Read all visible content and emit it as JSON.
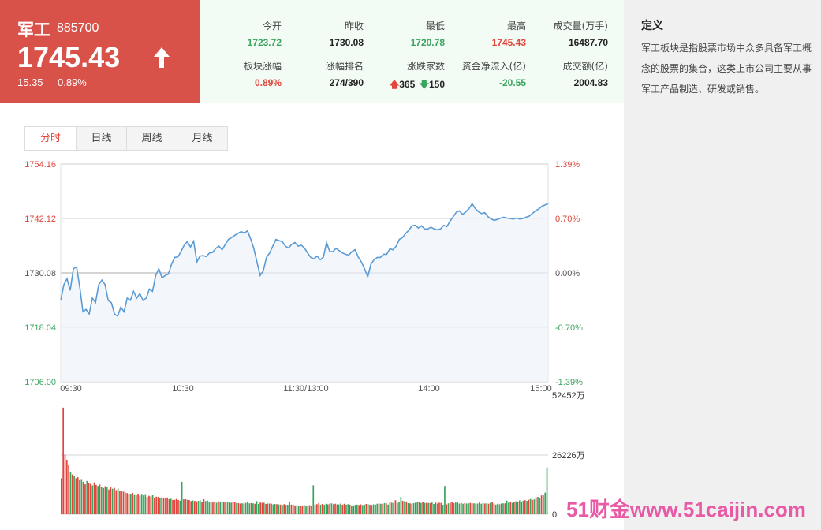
{
  "header": {
    "name": "军工",
    "code": "885700",
    "price": "1745.43",
    "change": "15.35",
    "change_pct": "0.89%"
  },
  "stats": {
    "open_label": "今开",
    "open": "1723.72",
    "prev_close_label": "昨收",
    "prev_close": "1730.08",
    "low_label": "最低",
    "low": "1720.78",
    "high_label": "最高",
    "high": "1745.43",
    "volume_label": "成交量(万手)",
    "volume": "16487.70",
    "pct_label": "板块涨幅",
    "pct": "0.89%",
    "rank_label": "涨幅排名",
    "rank": "274/390",
    "updown_label": "涨跌家数",
    "up": "365",
    "down": "150",
    "netflow_label": "资金净流入(亿)",
    "netflow": "-20.55",
    "amount_label": "成交额(亿)",
    "amount": "2004.83"
  },
  "definition": {
    "title": "定义",
    "text": "军工板块是指股票市场中众多具备军工概念的股票的集合，这类上市公司主要从事军工产品制造、研发或销售。"
  },
  "tabs": [
    "分时",
    "日线",
    "周线",
    "月线"
  ],
  "colors": {
    "up": "#e0463c",
    "down": "#3aa55f",
    "line": "#5b9bd5",
    "header_bg": "#d9524a"
  },
  "chart_data": [
    {
      "type": "line",
      "x_labels": [
        "09:30",
        "10:30",
        "11:30/13:00",
        "14:00",
        "15:00"
      ],
      "y_ticks_left": [
        "1754.16",
        "1742.12",
        "1730.08",
        "1718.04",
        "1706.00"
      ],
      "y_ticks_right": [
        "1.39%",
        "0.70%",
        "0.00%",
        "-0.70%",
        "-1.39%"
      ],
      "ylim": [
        1706.0,
        1754.16
      ],
      "baseline": 1730.08,
      "series": [
        {
          "values": [
            1724.0,
            1727.5,
            1728.8,
            1726.2,
            1731.0,
            1731.4,
            1727.0,
            1721.5,
            1722.0,
            1721.0,
            1724.5,
            1723.5,
            1727.5,
            1728.5,
            1727.5,
            1724.0,
            1723.5,
            1721.0,
            1720.5,
            1722.5,
            1721.5,
            1724.5,
            1724.0,
            1726.0,
            1724.5,
            1725.5,
            1724.0,
            1724.5,
            1726.5,
            1726.0,
            1729.5,
            1731.0,
            1729.0,
            1729.5,
            1729.8,
            1732.0,
            1733.5,
            1733.6,
            1734.8,
            1736.2,
            1737.0,
            1735.8,
            1737.1,
            1732.5,
            1733.8,
            1733.9,
            1733.7,
            1734.5,
            1734.6,
            1735.5,
            1736.0,
            1735.2,
            1736.4,
            1737.5,
            1737.9,
            1738.4,
            1738.8,
            1739.2,
            1738.9,
            1739.4,
            1737.6,
            1735.5,
            1732.5,
            1729.5,
            1730.5,
            1733.5,
            1734.5,
            1736.0,
            1737.5,
            1737.2,
            1737.0,
            1736.0,
            1735.6,
            1736.4,
            1736.8,
            1736.0,
            1736.2,
            1735.6,
            1734.5,
            1733.5,
            1733.2,
            1733.8,
            1733.0,
            1733.6,
            1736.8,
            1734.8,
            1734.8,
            1735.5,
            1735.0,
            1734.5,
            1734.2,
            1734.0,
            1734.8,
            1735.2,
            1733.6,
            1732.5,
            1731.0,
            1729.2,
            1732.0,
            1733.0,
            1733.5,
            1733.5,
            1734.2,
            1734.2,
            1735.4,
            1735.2,
            1736.0,
            1737.5,
            1737.9,
            1738.8,
            1739.5,
            1740.5,
            1740.6,
            1740.0,
            1740.5,
            1739.8,
            1739.8,
            1740.2,
            1739.8,
            1739.6,
            1739.8,
            1740.6,
            1740.3,
            1741.5,
            1742.5,
            1743.5,
            1743.8,
            1743.0,
            1743.6,
            1744.3,
            1745.4,
            1744.3,
            1743.6,
            1743.2,
            1743.4,
            1742.5,
            1742.0,
            1741.7,
            1741.9,
            1742.2,
            1742.4,
            1742.2,
            1742.1,
            1742.0,
            1742.2,
            1742.0,
            1742.1,
            1742.4,
            1742.6,
            1743.2,
            1743.8,
            1744.2,
            1744.8,
            1745.1,
            1745.4
          ]
        }
      ]
    },
    {
      "type": "bar",
      "y_ticks_right": [
        "52452万",
        "26226万",
        "0"
      ],
      "ylim": [
        0,
        52452
      ],
      "values": [
        17200,
        51000,
        28500,
        26000,
        23800,
        20000,
        19000,
        18500,
        17200,
        17700,
        16200,
        16800,
        15500,
        14300,
        15900,
        15000,
        14500,
        13800,
        15200,
        14000,
        13500,
        14200,
        13200,
        12500,
        13400,
        12800,
        11800,
        13000,
        12200,
        12600,
        11500,
        12200,
        11000,
        11300,
        10800,
        10400,
        10100,
        9800,
        9800,
        10200,
        9500,
        9200,
        9800,
        8800,
        9700,
        9000,
        9600,
        8200,
        8800,
        8500,
        9400,
        8000,
        8400,
        8300,
        7900,
        8100,
        7800,
        7500,
        8000,
        7200,
        7400,
        6800,
        6900,
        7300,
        6800,
        6500,
        15500,
        7100,
        7200,
        6900,
        6800,
        6300,
        6600,
        6400,
        6100,
        6400,
        6600,
        6000,
        7200,
        6300,
        6500,
        5800,
        5700,
        5600,
        6100,
        5500,
        6200,
        5700,
        5600,
        5800,
        5800,
        5800,
        5600,
        5500,
        5900,
        5800,
        5400,
        5300,
        5100,
        5200,
        5100,
        5400,
        5800,
        5200,
        5300,
        5200,
        5000,
        6300,
        4900,
        5600,
        5500,
        5500,
        4900,
        5100,
        5100,
        5000,
        4700,
        4900,
        4800,
        4700,
        4600,
        4400,
        4800,
        4500,
        4500,
        5700,
        4600,
        4500,
        4200,
        4300,
        4100,
        3800,
        4100,
        4400,
        4000,
        4000,
        4300,
        4200,
        13800,
        4600,
        4800,
        5300,
        4600,
        4900,
        4500,
        5000,
        4700,
        5000,
        5200,
        4800,
        5000,
        4700,
        4700,
        5100,
        4600,
        5000,
        4600,
        4800,
        4600,
        4200,
        4200,
        4500,
        4600,
        4400,
        4700,
        4400,
        4600,
        4900,
        4800,
        4500,
        4400,
        4700,
        4600,
        5000,
        5100,
        5000,
        4900,
        5300,
        5200,
        4600,
        5700,
        5500,
        5400,
        6700,
        5400,
        5800,
        8200,
        6400,
        6200,
        6100,
        5300,
        5200,
        5000,
        5300,
        5500,
        5700,
        5800,
        5400,
        5700,
        5400,
        5400,
        5400,
        5300,
        5600,
        4900,
        5600,
        5100,
        5500,
        5400,
        4500,
        13500,
        4700,
        5200,
        5500,
        5700,
        5300,
        5600,
        5600,
        5100,
        5500,
        5000,
        5300,
        5100,
        5200,
        5400,
        5200,
        5200,
        5100,
        5100,
        5600,
        5000,
        5400,
        5100,
        5300,
        5000,
        5400,
        5700,
        5100,
        4600,
        5000,
        4800,
        5100,
        5200,
        5200,
        6500,
        5500,
        5700,
        5400,
        5700,
        6200,
        5800,
        6600,
        5900,
        6500,
        6700,
        6400,
        6900,
        7300,
        6800,
        7100,
        8100,
        8300,
        7900,
        9000,
        9400,
        10300,
        22400
      ],
      "colors": [
        "up",
        "up",
        "up",
        "up",
        "up",
        "down",
        "up",
        "down",
        "up",
        "up",
        "up",
        "down",
        "up",
        "up",
        "down",
        "up",
        "up",
        "down",
        "up",
        "up",
        "down",
        "up",
        "down",
        "up",
        "up",
        "down",
        "up",
        "up",
        "down",
        "up",
        "up",
        "down",
        "up",
        "down",
        "up",
        "down",
        "up",
        "up",
        "down",
        "up",
        "down",
        "up",
        "up",
        "down",
        "down",
        "up",
        "down",
        "up",
        "up",
        "up",
        "down",
        "up",
        "up",
        "up",
        "down",
        "up",
        "up",
        "down",
        "up",
        "up",
        "down",
        "up",
        "up",
        "up",
        "up",
        "down",
        "down",
        "up",
        "up",
        "down",
        "up",
        "up",
        "down",
        "up",
        "up",
        "down",
        "down",
        "up",
        "up",
        "down",
        "up",
        "down",
        "down",
        "up",
        "up",
        "down",
        "up",
        "down",
        "down",
        "up",
        "up",
        "down",
        "up",
        "down",
        "up",
        "up",
        "down",
        "up",
        "up",
        "down",
        "up",
        "down",
        "up",
        "down",
        "up",
        "down",
        "up",
        "down",
        "down",
        "up",
        "up",
        "down",
        "up",
        "down",
        "up",
        "up",
        "down",
        "down",
        "up",
        "down",
        "up",
        "down",
        "up",
        "down",
        "down",
        "down",
        "up",
        "down",
        "up",
        "down",
        "down",
        "up",
        "up",
        "down",
        "down",
        "up",
        "up",
        "down",
        "down",
        "down",
        "up",
        "up",
        "down",
        "up",
        "down",
        "down",
        "up",
        "up",
        "down",
        "down",
        "up",
        "up",
        "down",
        "down",
        "up",
        "up",
        "down",
        "down",
        "up",
        "down",
        "up",
        "down",
        "down",
        "up",
        "up",
        "down",
        "down",
        "up",
        "down",
        "up",
        "down",
        "down",
        "up",
        "down",
        "up",
        "down",
        "up",
        "down",
        "up",
        "down",
        "up",
        "down",
        "down",
        "up",
        "up",
        "down",
        "down",
        "up",
        "down",
        "up",
        "down",
        "up",
        "down",
        "down",
        "up",
        "down",
        "up",
        "down",
        "up",
        "down",
        "up",
        "down",
        "up",
        "down",
        "down",
        "up",
        "down",
        "up",
        "up",
        "down",
        "down",
        "up",
        "down",
        "up",
        "up",
        "down",
        "down",
        "up",
        "down",
        "up",
        "down",
        "up",
        "down",
        "down",
        "up",
        "up",
        "down",
        "up",
        "down",
        "up",
        "down",
        "down",
        "up",
        "down",
        "up",
        "down",
        "up",
        "up",
        "down",
        "up",
        "down",
        "up",
        "down",
        "up",
        "down",
        "down",
        "up",
        "down",
        "up",
        "down",
        "up",
        "down",
        "up",
        "down",
        "up",
        "down",
        "up",
        "down",
        "up",
        "down",
        "up",
        "down",
        "down",
        "up",
        "down",
        "down"
      ]
    }
  ],
  "watermark": "51财金www.51caijin.com"
}
